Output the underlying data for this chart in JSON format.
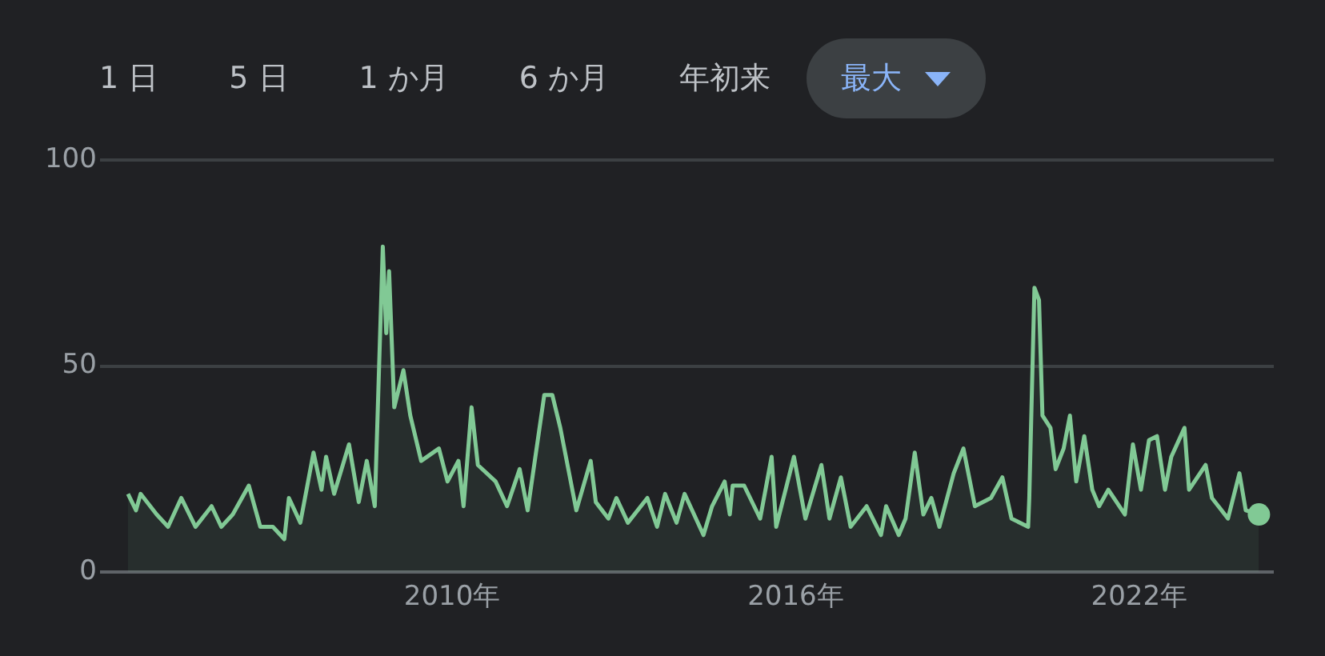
{
  "chart_data": {
    "type": "area",
    "annotations": [
      "1 日",
      "5 日",
      "1 か月",
      "6 か月",
      "年初来",
      "最大"
    ],
    "xlim": [
      2003.85,
      2024.35
    ],
    "xticks": [
      {
        "value": 2010,
        "label": "2010年"
      },
      {
        "value": 2016,
        "label": "2016年"
      },
      {
        "value": 2022,
        "label": "2022年"
      }
    ],
    "ylim": [
      0,
      100
    ],
    "yticks": [
      0,
      50,
      100
    ],
    "grid": "y",
    "legend": false,
    "marker": "none",
    "line_style": "solid",
    "series": [
      {
        "color": "#81c995",
        "x": [
          2004.34,
          2004.48,
          2004.56,
          2004.84,
          2005.04,
          2005.27,
          2005.52,
          2005.8,
          2005.97,
          2006.17,
          2006.45,
          2006.65,
          2006.87,
          2007.07,
          2007.15,
          2007.35,
          2007.58,
          2007.72,
          2007.8,
          2007.94,
          2008.2,
          2008.37,
          2008.51,
          2008.65,
          2008.79,
          2008.85,
          2008.9,
          2008.99,
          2009.15,
          2009.27,
          2009.46,
          2009.77,
          2009.92,
          2010.11,
          2010.2,
          2010.34,
          2010.45,
          2010.76,
          2010.96,
          2011.18,
          2011.32,
          2011.61,
          2011.75,
          2011.89,
          2012.17,
          2012.42,
          2012.51,
          2012.73,
          2012.87,
          2013.07,
          2013.41,
          2013.58,
          2013.72,
          2013.92,
          2014.06,
          2014.39,
          2014.54,
          2014.76,
          2014.85,
          2014.9,
          2015.1,
          2015.38,
          2015.58,
          2015.66,
          2015.97,
          2016.17,
          2016.45,
          2016.59,
          2016.79,
          2016.96,
          2017.24,
          2017.49,
          2017.58,
          2017.8,
          2017.92,
          2018.08,
          2018.23,
          2018.37,
          2018.51,
          2018.76,
          2018.93,
          2019.13,
          2019.41,
          2019.61,
          2019.77,
          2020.06,
          2020.08,
          2020.17,
          2020.25,
          2020.31,
          2020.45,
          2020.54,
          2020.68,
          2020.79,
          2020.9,
          2021.04,
          2021.18,
          2021.3,
          2021.46,
          2021.75,
          2021.89,
          2022.03,
          2022.17,
          2022.31,
          2022.45,
          2022.56,
          2022.79,
          2022.87,
          2023.16,
          2023.27,
          2023.55,
          2023.75,
          2023.86,
          2024.09
        ],
        "values": [
          19,
          15,
          19,
          14,
          11,
          18,
          11,
          16,
          11,
          14,
          21,
          11,
          11,
          8,
          18,
          12,
          29,
          20,
          28,
          19,
          31,
          17,
          27,
          16,
          79,
          58,
          73,
          40,
          49,
          38,
          27,
          30,
          22,
          27,
          16,
          40,
          26,
          22,
          16,
          25,
          15,
          43,
          43,
          35,
          15,
          27,
          17,
          13,
          18,
          12,
          18,
          11,
          19,
          12,
          19,
          9,
          16,
          22,
          14,
          21,
          21,
          13,
          28,
          11,
          28,
          13,
          26,
          13,
          23,
          11,
          16,
          9,
          16,
          9,
          13,
          29,
          14,
          18,
          11,
          24,
          30,
          16,
          18,
          23,
          13,
          11,
          18,
          69,
          66,
          38,
          35,
          25,
          30,
          38,
          22,
          33,
          20,
          16,
          20,
          14,
          31,
          20,
          32,
          33,
          20,
          28,
          35,
          20,
          26,
          18,
          13,
          24,
          15,
          14
        ]
      }
    ]
  }
}
